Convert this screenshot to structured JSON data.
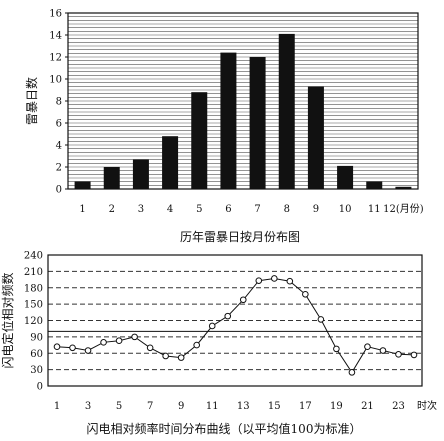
{
  "chart_data": [
    {
      "type": "bar",
      "title": "历年雷暴日按月份布图",
      "ylabel": "雷暴日数",
      "categories": [
        "1",
        "2",
        "3",
        "4",
        "5",
        "6",
        "7",
        "8",
        "9",
        "10",
        "11",
        "12(月份)"
      ],
      "values": [
        0.7,
        2.0,
        2.7,
        4.8,
        8.8,
        12.4,
        12.0,
        14.1,
        9.3,
        2.1,
        0.7,
        0.2
      ],
      "ylim": [
        0,
        16
      ],
      "yticks": [
        0,
        2,
        4,
        6,
        8,
        10,
        12,
        14,
        16
      ],
      "grid": true
    },
    {
      "type": "line",
      "title": "闪电相对频率时间分布曲线（以平均值100为标准）",
      "ylabel": "闪电定位相对频数",
      "x": [
        1,
        2,
        3,
        4,
        5,
        6,
        7,
        8,
        9,
        10,
        11,
        12,
        13,
        14,
        15,
        16,
        17,
        18,
        19,
        20,
        21,
        22,
        23,
        24
      ],
      "y": [
        72,
        70,
        65,
        80,
        83,
        90,
        70,
        55,
        52,
        75,
        110,
        128,
        158,
        193,
        197,
        192,
        168,
        122,
        68,
        25,
        72,
        65,
        58,
        57
      ],
      "xticks": [
        "1",
        "3",
        "5",
        "7",
        "9",
        "11",
        "13",
        "15",
        "17",
        "19",
        "21",
        "23"
      ],
      "xunit": "时次",
      "ylim": [
        0,
        240
      ],
      "yticks": [
        0,
        30,
        60,
        90,
        120,
        150,
        180,
        210,
        240
      ],
      "grid": true
    }
  ]
}
